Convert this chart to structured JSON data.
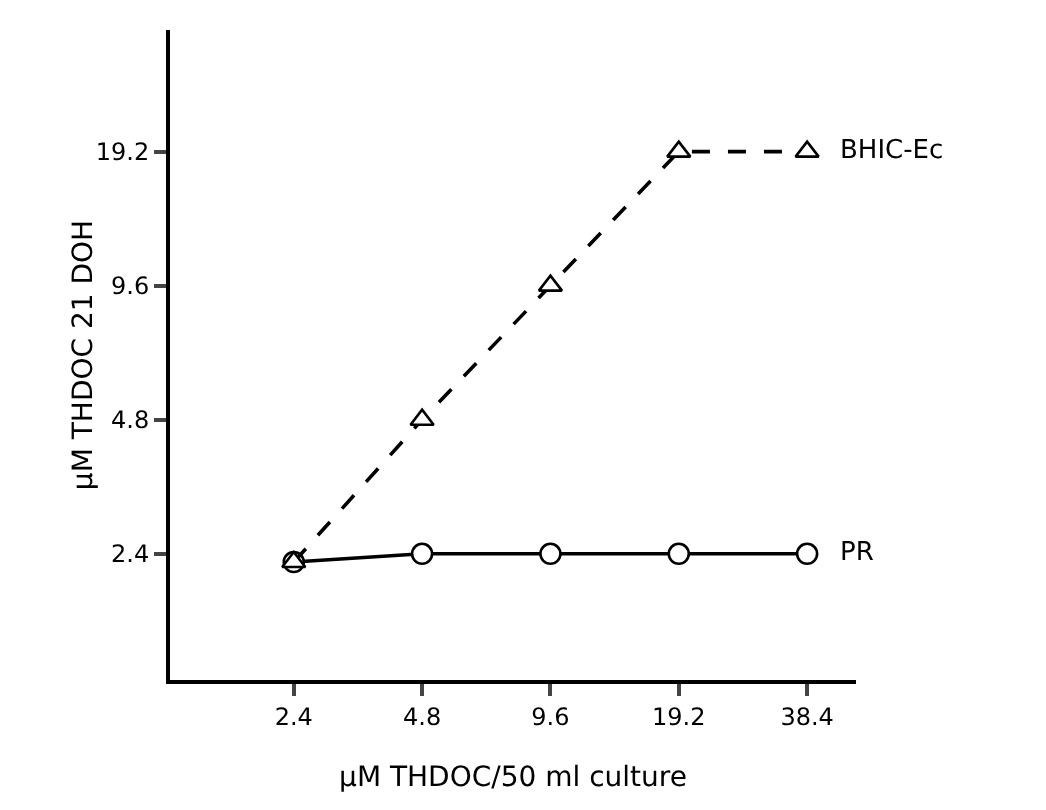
{
  "chart_data": {
    "type": "line",
    "xlabel": "μM THDOC/50 ml culture",
    "ylabel": "μM THDOC 21 DOH",
    "x": [
      2.4,
      4.8,
      9.6,
      19.2,
      38.4
    ],
    "series": [
      {
        "name": "PR",
        "color": "#000000",
        "values": [
          2.3,
          2.4,
          2.4,
          2.4,
          2.4
        ],
        "marker": "circle",
        "line_style": "solid"
      },
      {
        "name": "BHIC-Ec",
        "color": "#000000",
        "values": [
          2.3,
          4.8,
          9.6,
          19.2,
          19.2
        ],
        "marker": "triangle",
        "line_style": "dashed"
      }
    ],
    "log": "xy",
    "xlim": [
      1.23,
      50
    ],
    "ylim": [
      1.25,
      36
    ],
    "xticks": [
      2.4,
      4.8,
      9.6,
      19.2,
      38.4
    ],
    "yticks": [
      2.4,
      4.8,
      9.6,
      19.2
    ],
    "grid": false,
    "legend": false
  }
}
